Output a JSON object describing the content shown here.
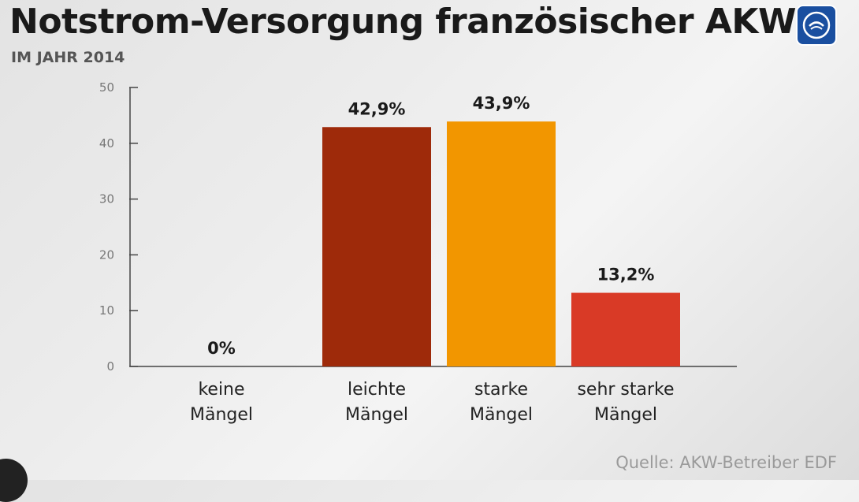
{
  "header": {
    "title": "Notstrom-Versorgung französischer AKW",
    "subtitle": "IM JAHR 2014"
  },
  "footer": {
    "source": "Quelle: AKW-Betreiber EDF"
  },
  "logo": {
    "icon": "tagesschau-logo-icon",
    "color": "#1a4fa0"
  },
  "colors": {
    "axis": "#444444",
    "bar_colors": [
      "#9e2a0a",
      "#9e2a0a",
      "#f29600",
      "#d93a26"
    ]
  },
  "chart_data": {
    "type": "bar",
    "title": "Notstrom-Versorgung französischer AKW",
    "subtitle": "IM JAHR 2014",
    "categories": [
      [
        "keine",
        "Mängel"
      ],
      [
        "leichte",
        "Mängel"
      ],
      [
        "starke",
        "Mängel"
      ],
      [
        "sehr starke",
        "Mängel"
      ]
    ],
    "values": [
      0,
      42.9,
      43.9,
      13.2
    ],
    "value_labels": [
      "0%",
      "42,9%",
      "43,9%",
      "13,2%"
    ],
    "ylim": [
      0,
      50
    ],
    "yticks": [
      0,
      10,
      20,
      30,
      40,
      50
    ],
    "xlabel": "",
    "ylabel": "",
    "grid": false,
    "legend": "none"
  }
}
